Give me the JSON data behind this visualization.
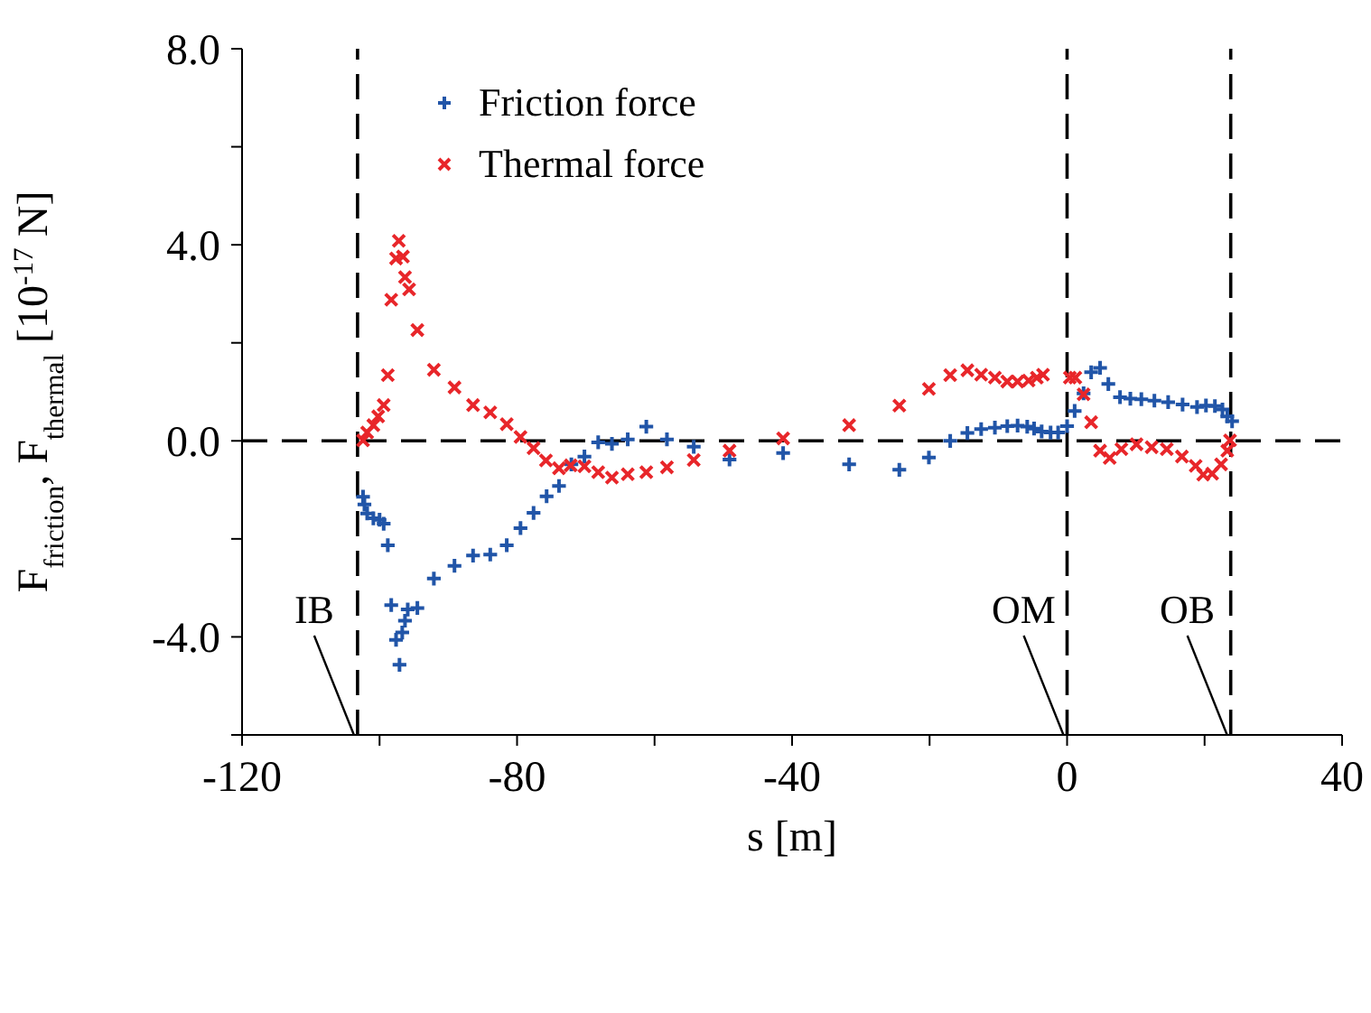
{
  "chart_data": {
    "type": "scatter",
    "xlabel": "s [m]",
    "ylabel": "F$_{friction}$, F$_{thermal}$ [10$^{-17}$ N]",
    "xlim": [
      -120,
      40
    ],
    "xticks": [
      -120,
      {
        "value": -100,
        "label": null
      },
      -80,
      {
        "value": -60,
        "label": null
      },
      -40,
      {
        "value": -20,
        "label": null
      },
      0,
      {
        "value": 20,
        "label": null
      },
      40
    ],
    "ylim": [
      -6,
      8
    ],
    "yticks": [
      {
        "value": -6,
        "label": null
      },
      {
        "value": -4,
        "label": "-4.0"
      },
      {
        "value": -2,
        "label": null
      },
      {
        "value": 0,
        "label": "0.0"
      },
      {
        "value": 2,
        "label": null
      },
      {
        "value": 4,
        "label": "4.0"
      },
      {
        "value": 6,
        "label": null
      },
      {
        "value": 8,
        "label": "8.0"
      }
    ],
    "legend": "top left",
    "ref_lines": [
      {
        "axis": "x",
        "value": -103.2,
        "label": "IB",
        "line_style": "dashed",
        "color": "#000000"
      },
      {
        "axis": "x",
        "value": 0,
        "label": "OM",
        "line_style": "dashed",
        "color": "#000000"
      },
      {
        "axis": "x",
        "value": 23.8,
        "label": "OB",
        "line_style": "dashed",
        "color": "#000000"
      },
      {
        "axis": "y",
        "value": 0,
        "line_style": "dashed",
        "color": "#000000"
      }
    ],
    "series": [
      {
        "name": "Friction force",
        "color": "#2155a8",
        "marker": "plus",
        "x": [
          -102.4,
          -102.2,
          -101.8,
          -100.9,
          -100.0,
          -99.4,
          -98.8,
          -98.3,
          -97.6,
          -97.1,
          -96.7,
          -96.3,
          -95.9,
          -94.5,
          -92.1,
          -89.1,
          -86.4,
          -83.9,
          -81.5,
          -79.5,
          -77.6,
          -75.7,
          -73.9,
          -72.1,
          -70.2,
          -68.2,
          -66.2,
          -63.9,
          -61.2,
          -58.2,
          -54.3,
          -49.1,
          -41.3,
          -31.7,
          -24.4,
          -20.1,
          -17.0,
          -14.5,
          -12.5,
          -10.5,
          -8.7,
          -7.2,
          -5.8,
          -4.8,
          -3.7,
          -2.4,
          -1.3,
          0.0,
          1.1,
          2.4,
          3.5,
          4.8,
          6.0,
          7.7,
          9.2,
          10.8,
          12.7,
          14.7,
          16.8,
          18.9,
          20.2,
          21.5,
          22.6,
          23.3,
          24.0
        ],
        "values": [
          -1.14,
          -1.3,
          -1.48,
          -1.58,
          -1.61,
          -1.69,
          -2.13,
          -3.35,
          -4.06,
          -4.57,
          -3.91,
          -3.67,
          -3.44,
          -3.41,
          -2.81,
          -2.55,
          -2.34,
          -2.32,
          -2.13,
          -1.78,
          -1.47,
          -1.13,
          -0.92,
          -0.48,
          -0.32,
          -0.03,
          -0.06,
          0.03,
          0.29,
          0.03,
          -0.12,
          -0.38,
          -0.25,
          -0.48,
          -0.59,
          -0.34,
          0.0,
          0.16,
          0.24,
          0.27,
          0.3,
          0.31,
          0.29,
          0.25,
          0.19,
          0.17,
          0.17,
          0.3,
          0.61,
          0.97,
          1.4,
          1.49,
          1.16,
          0.89,
          0.86,
          0.85,
          0.82,
          0.79,
          0.74,
          0.69,
          0.72,
          0.71,
          0.64,
          0.5,
          0.4
        ]
      },
      {
        "name": "Thermal force",
        "color": "#e8262a",
        "marker": "cross",
        "x": [
          -102.4,
          -101.8,
          -100.9,
          -100.2,
          -99.4,
          -98.8,
          -98.3,
          -97.6,
          -97.2,
          -96.6,
          -96.3,
          -95.7,
          -94.5,
          -92.1,
          -89.1,
          -86.4,
          -83.9,
          -81.5,
          -79.5,
          -77.6,
          -75.8,
          -73.9,
          -72.2,
          -70.2,
          -68.2,
          -66.2,
          -63.9,
          -61.2,
          -58.2,
          -54.3,
          -49.1,
          -41.3,
          -31.7,
          -24.4,
          -20.1,
          -17.0,
          -14.5,
          -12.5,
          -10.5,
          -8.7,
          -7.2,
          -5.6,
          -4.4,
          -3.5,
          0.4,
          1.2,
          2.4,
          3.5,
          4.8,
          6.2,
          7.9,
          10.1,
          12.3,
          14.5,
          16.7,
          18.7,
          19.8,
          21.1,
          22.4,
          23.3,
          23.7
        ],
        "values": [
          0.01,
          0.17,
          0.32,
          0.5,
          0.73,
          1.34,
          2.88,
          3.72,
          4.08,
          3.76,
          3.34,
          3.09,
          2.26,
          1.45,
          1.09,
          0.73,
          0.58,
          0.34,
          0.08,
          -0.15,
          -0.4,
          -0.56,
          -0.5,
          -0.52,
          -0.64,
          -0.75,
          -0.68,
          -0.64,
          -0.54,
          -0.39,
          -0.2,
          0.05,
          0.32,
          0.72,
          1.06,
          1.34,
          1.44,
          1.35,
          1.29,
          1.21,
          1.21,
          1.23,
          1.29,
          1.35,
          1.29,
          1.29,
          0.95,
          0.38,
          -0.2,
          -0.35,
          -0.17,
          -0.07,
          -0.13,
          -0.17,
          -0.32,
          -0.51,
          -0.69,
          -0.67,
          -0.48,
          -0.2,
          0.01
        ]
      }
    ]
  }
}
